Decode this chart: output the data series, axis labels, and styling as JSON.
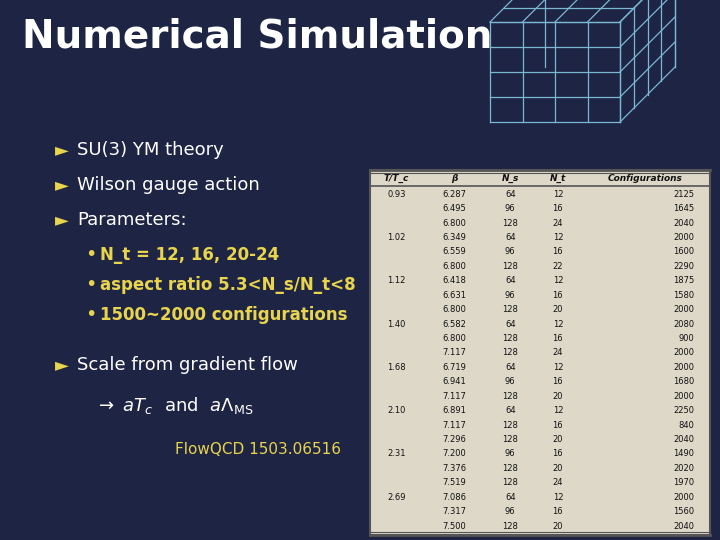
{
  "bg_color": "#1e2444",
  "title": "Numerical Simulation",
  "title_color": "#ffffff",
  "title_fontsize": 28,
  "arrow_color": "#e8d44d",
  "text_color": "#ffffff",
  "items": [
    "SU(3) YM theory",
    "Wilson gauge action",
    "Parameters:"
  ],
  "subitems": [
    "N_t = 12, 16, 20-24",
    "aspect ratio 5.3<N_s/N_t<8",
    "1500~2000 configurations"
  ],
  "scale_item": "Scale from gradient flow",
  "citation": "FlowQCD 1503.06516",
  "table_header": [
    "T/T_c",
    "β",
    "N_s",
    "N_t",
    "Configurations"
  ],
  "table_data": [
    [
      "0.93",
      "6.287",
      "64",
      "12",
      "2125"
    ],
    [
      "",
      "6.495",
      "96",
      "16",
      "1645"
    ],
    [
      "",
      "6.800",
      "128",
      "24",
      "2040"
    ],
    [
      "1.02",
      "6.349",
      "64",
      "12",
      "2000"
    ],
    [
      "",
      "6.559",
      "96",
      "16",
      "1600"
    ],
    [
      "",
      "6.800",
      "128",
      "22",
      "2290"
    ],
    [
      "1.12",
      "6.418",
      "64",
      "12",
      "1875"
    ],
    [
      "",
      "6.631",
      "96",
      "16",
      "1580"
    ],
    [
      "",
      "6.800",
      "128",
      "20",
      "2000"
    ],
    [
      "1.40",
      "6.582",
      "64",
      "12",
      "2080"
    ],
    [
      "",
      "6.800",
      "128",
      "16",
      "900"
    ],
    [
      "",
      "7.117",
      "128",
      "24",
      "2000"
    ],
    [
      "1.68",
      "6.719",
      "64",
      "12",
      "2000"
    ],
    [
      "",
      "6.941",
      "96",
      "16",
      "1680"
    ],
    [
      "",
      "7.117",
      "128",
      "20",
      "2000"
    ],
    [
      "2.10",
      "6.891",
      "64",
      "12",
      "2250"
    ],
    [
      "",
      "7.117",
      "128",
      "16",
      "840"
    ],
    [
      "",
      "7.296",
      "128",
      "20",
      "2040"
    ],
    [
      "2.31",
      "7.200",
      "96",
      "16",
      "1490"
    ],
    [
      "",
      "7.376",
      "128",
      "20",
      "2020"
    ],
    [
      "",
      "7.519",
      "128",
      "24",
      "1970"
    ],
    [
      "2.69",
      "7.086",
      "64",
      "12",
      "2000"
    ],
    [
      "",
      "7.317",
      "96",
      "16",
      "1560"
    ],
    [
      "",
      "7.500",
      "128",
      "20",
      "2040"
    ]
  ],
  "table_bg": "#ddd8c8",
  "table_text_color": "#111111",
  "table_line_color": "#555555",
  "cube_color": "#7ab8d4"
}
